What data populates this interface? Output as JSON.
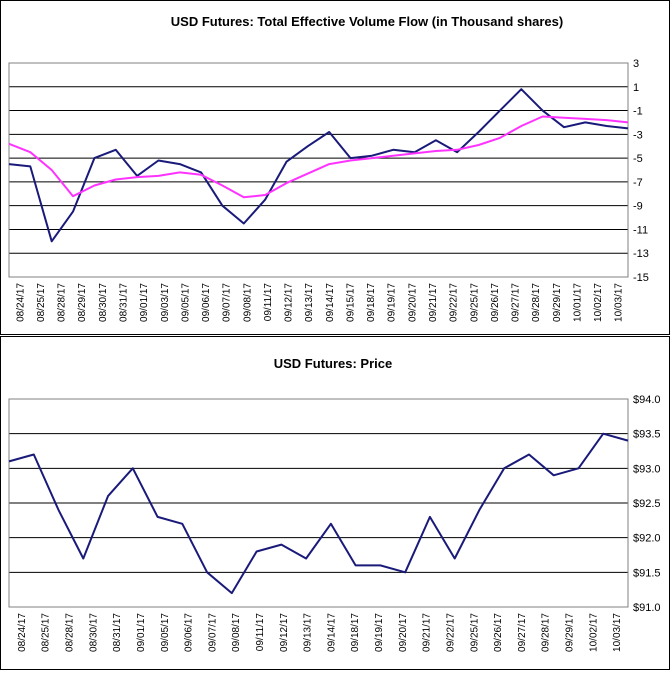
{
  "chart_data": [
    {
      "type": "line",
      "title": "USD Futures: Total Effective Volume Flow (in Thousand shares)",
      "xlabel": "",
      "ylabel": "",
      "ylim": [
        -15,
        3
      ],
      "yticks": [
        "3",
        "1",
        "-1",
        "-3",
        "-5",
        "-7",
        "-9",
        "-11",
        "-13",
        "-15"
      ],
      "yticks_values": [
        3,
        1,
        -1,
        -3,
        -5,
        -7,
        -9,
        -11,
        -13,
        -15
      ],
      "categories": [
        "08/24/17",
        "08/25/17",
        "08/28/17",
        "08/29/17",
        "08/30/17",
        "08/31/17",
        "09/01/17",
        "09/03/17",
        "09/05/17",
        "09/06/17",
        "09/07/17",
        "09/08/17",
        "09/11/17",
        "09/12/17",
        "09/13/17",
        "09/14/17",
        "09/15/17",
        "09/18/17",
        "09/19/17",
        "09/20/17",
        "09/21/17",
        "09/22/17",
        "09/25/17",
        "09/26/17",
        "09/27/17",
        "09/28/17",
        "09/29/17",
        "10/01/17",
        "10/02/17",
        "10/03/17"
      ],
      "grid": "horizontal",
      "series": [
        {
          "name": "",
          "color": "#1a1a7a",
          "values": [
            -5.5,
            -5.7,
            -12.0,
            -9.5,
            -5.0,
            -4.3,
            -6.5,
            -5.2,
            -5.5,
            -6.2,
            -9.0,
            -10.5,
            -8.5,
            -5.3,
            -4.0,
            -2.8,
            -5.0,
            -4.8,
            -4.3,
            -4.5,
            -3.5,
            -4.5,
            -2.8,
            -1.0,
            0.8,
            -1.0,
            -2.4,
            -2.0,
            -2.3,
            -2.5
          ]
        },
        {
          "name": "",
          "color": "#ff33ff",
          "values": [
            -3.8,
            -4.5,
            -6.0,
            -8.2,
            -7.3,
            -6.8,
            -6.6,
            -6.5,
            -6.2,
            -6.4,
            -7.3,
            -8.3,
            -8.1,
            -7.1,
            -6.3,
            -5.5,
            -5.2,
            -5.0,
            -4.8,
            -4.6,
            -4.4,
            -4.3,
            -3.9,
            -3.3,
            -2.3,
            -1.5,
            -1.6,
            -1.7,
            -1.8,
            -2.0
          ]
        }
      ]
    },
    {
      "type": "line",
      "title": "USD Futures: Price",
      "xlabel": "",
      "ylabel": "",
      "ylim": [
        91.0,
        94.0
      ],
      "yticks": [
        "$94.0",
        "$93.5",
        "$93.0",
        "$92.5",
        "$92.0",
        "$91.5",
        "$91.0"
      ],
      "yticks_values": [
        94.0,
        93.5,
        93.0,
        92.5,
        92.0,
        91.5,
        91.0
      ],
      "categories": [
        "08/24/17",
        "08/25/17",
        "08/28/17",
        "08/30/17",
        "08/31/17",
        "09/01/17",
        "09/05/17",
        "09/06/17",
        "09/07/17",
        "09/08/17",
        "09/11/17",
        "09/12/17",
        "09/13/17",
        "09/14/17",
        "09/18/17",
        "09/19/17",
        "09/20/17",
        "09/21/17",
        "09/22/17",
        "09/25/17",
        "09/26/17",
        "09/27/17",
        "09/28/17",
        "09/29/17",
        "10/02/17",
        "10/03/17"
      ],
      "grid": "horizontal",
      "series": [
        {
          "name": "",
          "color": "#1a1a7a",
          "values": [
            93.1,
            93.2,
            92.4,
            91.7,
            92.6,
            93.0,
            92.3,
            92.2,
            91.5,
            91.2,
            91.8,
            91.9,
            91.7,
            92.2,
            91.6,
            91.6,
            91.5,
            92.3,
            91.7,
            92.4,
            93.0,
            93.2,
            92.9,
            93.0,
            93.5,
            93.4
          ]
        }
      ]
    }
  ]
}
